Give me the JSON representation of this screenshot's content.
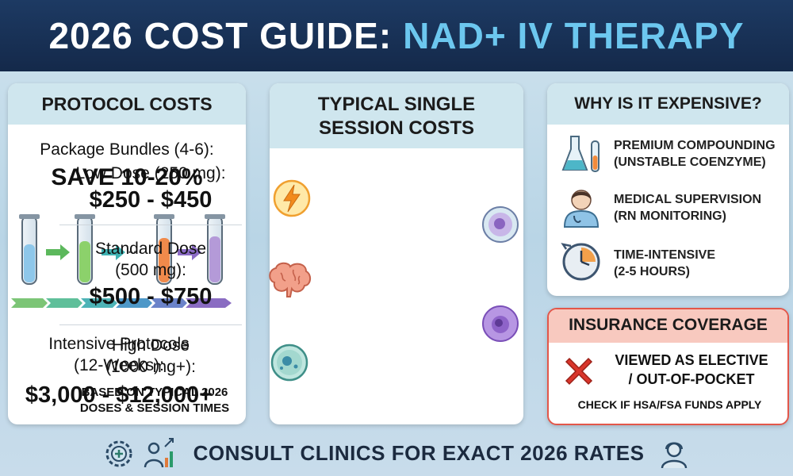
{
  "header": {
    "title_part1": "2026 COST GUIDE:",
    "title_part2": "NAD+ IV THERAPY"
  },
  "protocol_costs": {
    "heading": "PROTOCOL COSTS",
    "package_label": "Package Bundles (4-6):",
    "package_savings": "SAVE 10-20%",
    "intensive_label_line1": "Intensive Protocols",
    "intensive_label_line2": "(12-Weeks):",
    "intensive_price": "$3,000 - $12,000+"
  },
  "single_session": {
    "heading_line1": "TYPICAL SINGLE",
    "heading_line2": "SESSION COSTS",
    "low_label": "Low Dose (250 mg):",
    "low_price": "$250 - $450",
    "standard_label_line1": "Standard Dose",
    "standard_label_line2": "(500 mg):",
    "standard_price": "$500 - $750",
    "high_label_line1": "High Dose",
    "high_label_line2": "(1000 mg+):",
    "basis_line1": "BASED ON TYPICAL 2026",
    "basis_line2": "DOSES & SESSION TIMES"
  },
  "why_expensive": {
    "heading": "WHY IS IT EXPENSIVE?",
    "items": [
      {
        "line1": "PREMIUM COMPOUNDING",
        "line2": "(UNSTABLE COENZYME)",
        "icon": "flask-icon"
      },
      {
        "line1": "MEDICAL SUPERVISION",
        "line2": "(RN MONITORING)",
        "icon": "nurse-icon"
      },
      {
        "line1": "TIME-INTENSIVE",
        "line2": "(2-5 HOURS)",
        "icon": "clock-icon"
      }
    ]
  },
  "insurance": {
    "heading": "INSURANCE COVERAGE",
    "line1": "VIEWED AS ELECTIVE",
    "line2": "/ OUT-OF-POCKET",
    "check": "CHECK IF HSA/FSA FUNDS APPLY"
  },
  "footer": {
    "text": "CONSULT CLINICS FOR EXACT 2026 RATES"
  },
  "colors": {
    "header_bg": "#14294a",
    "accent_blue": "#6cc7ef",
    "card_head": "#cfe6ee",
    "insurance_head": "#f8c9bf",
    "insurance_border": "#e3574a",
    "x_red": "#d9352b"
  }
}
